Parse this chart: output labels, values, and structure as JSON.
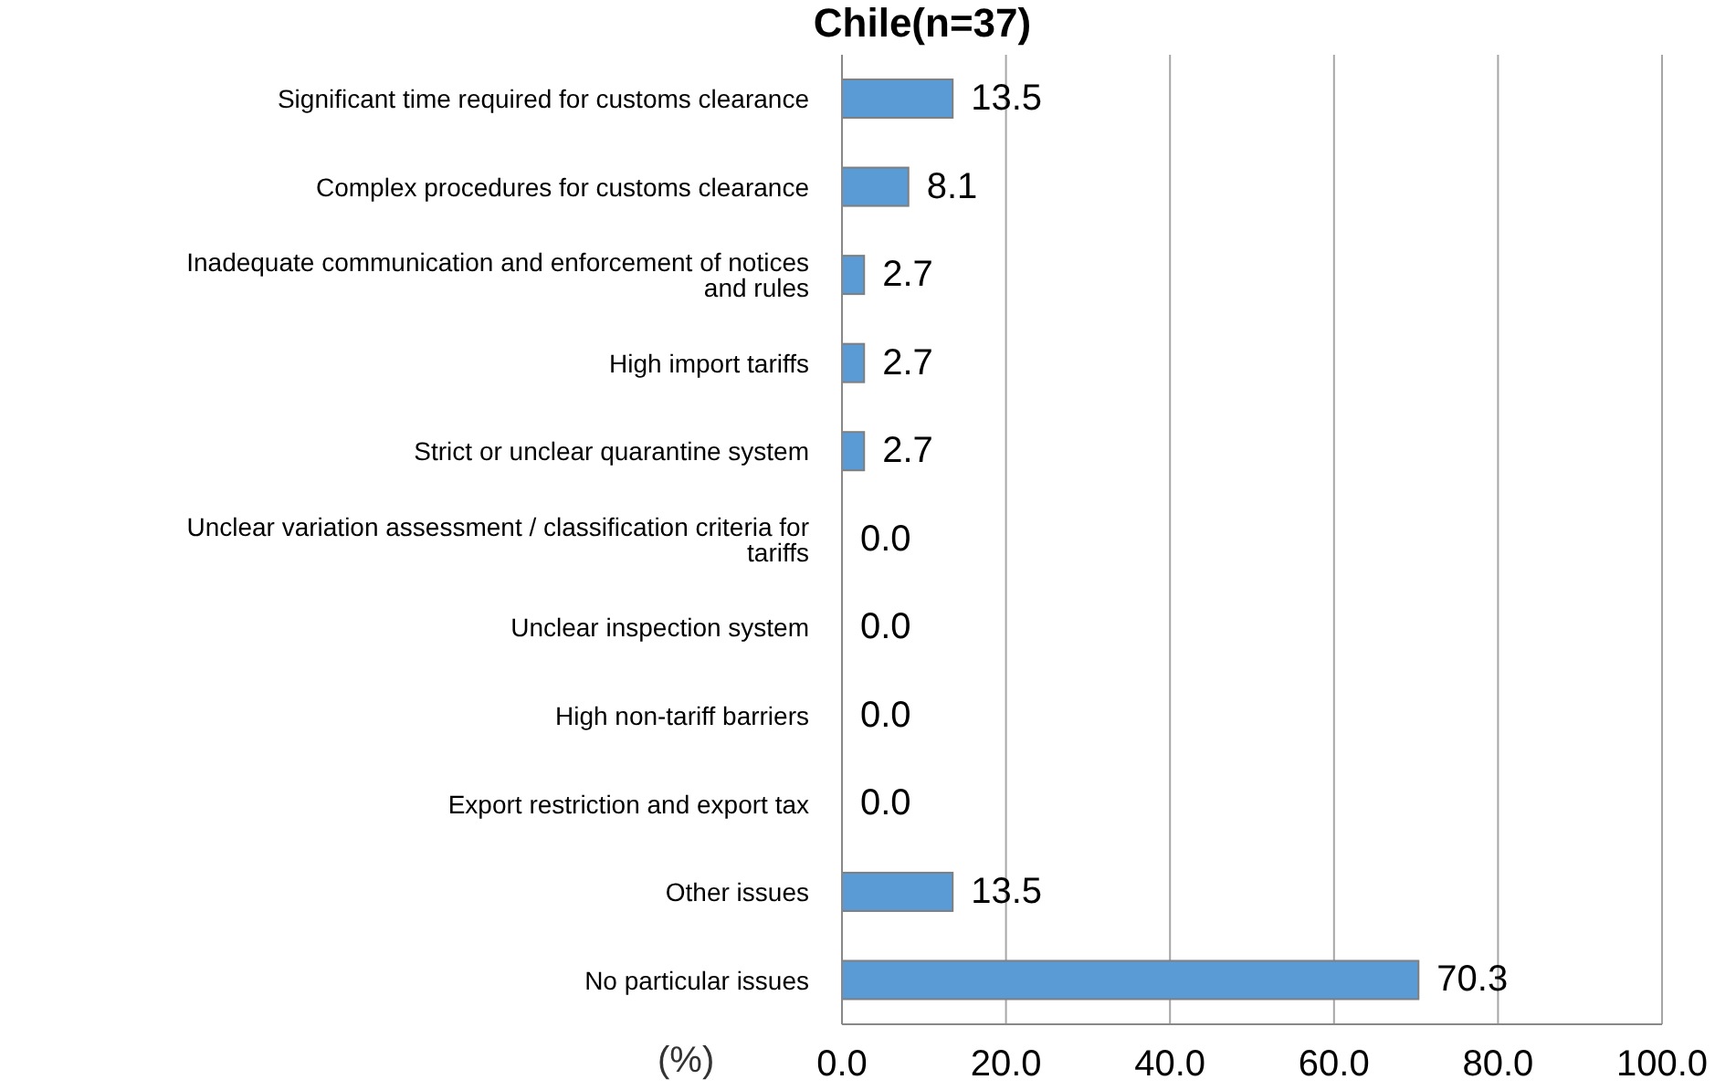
{
  "chart_data": {
    "type": "bar",
    "orientation": "horizontal",
    "title": "Chile(n=37)",
    "categories": [
      "Significant time required for customs clearance",
      "Complex procedures for customs clearance",
      "Inadequate communication and enforcement of notices and rules",
      "High import tariffs",
      "Strict or unclear quarantine system",
      "Unclear variation assessment / classification criteria for tariffs",
      "Unclear inspection system",
      "High non-tariff barriers",
      "Export restriction and export tax",
      "Other issues",
      "No particular issues"
    ],
    "values": [
      13.5,
      8.1,
      2.7,
      2.7,
      2.7,
      0.0,
      0.0,
      0.0,
      0.0,
      13.5,
      70.3
    ],
    "value_labels": [
      "13.5",
      "8.1",
      "2.7",
      "2.7",
      "2.7",
      "0.0",
      "0.0",
      "0.0",
      "0.0",
      "13.5",
      "70.3"
    ],
    "color": "#5b9bd5",
    "xlim": [
      0,
      100
    ],
    "xticks": [
      {
        "value": 0,
        "label": "0.0"
      },
      {
        "value": 20,
        "label": "20.0"
      },
      {
        "value": 40,
        "label": "40.0"
      },
      {
        "value": 60,
        "label": "60.0"
      },
      {
        "value": 80,
        "label": "80.0"
      },
      {
        "value": 100,
        "label": "100.0"
      }
    ],
    "grid": "x",
    "annotations": [
      "(%)"
    ]
  }
}
